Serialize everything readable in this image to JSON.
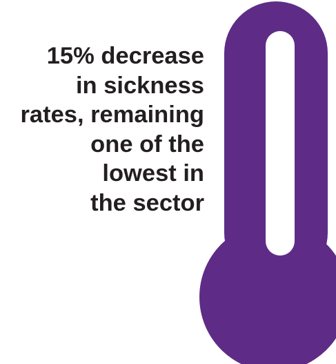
{
  "statement": {
    "lines": [
      "15% decrease",
      "in sickness",
      "rates, remaining",
      "one of the",
      "lowest in",
      "the sector"
    ]
  },
  "thermometer": {
    "icon": "thermometer-icon",
    "color": "#5e2c86",
    "tube_color": "#ffffff"
  }
}
